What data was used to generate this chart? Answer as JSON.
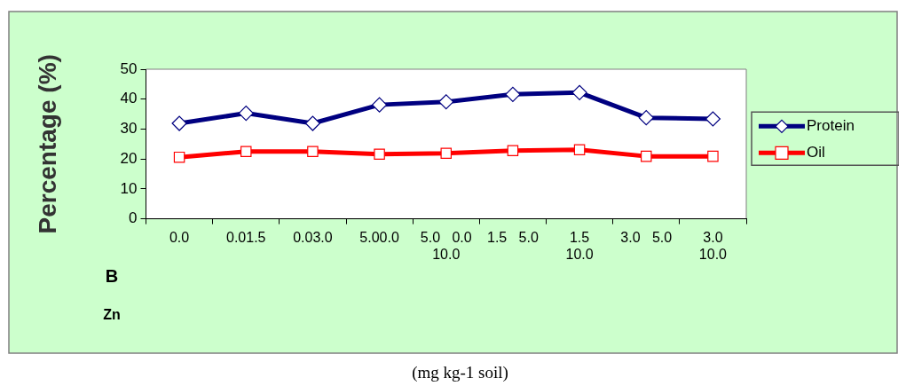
{
  "chart_data": {
    "type": "line",
    "ylabel": "Percentage (%)",
    "categories": [
      "0.0",
      "0.01.5",
      "0.03.0",
      "5.00.0",
      "5.0   0.0\n10.0",
      "1.5   5.0",
      "1.5\n10.0",
      "3.0   5.0",
      "3.0\n10.0"
    ],
    "series": [
      {
        "name": "Protein",
        "color": "#000080",
        "marker": "diamond",
        "values": [
          31.9,
          35.3,
          31.9,
          38.1,
          39.1,
          41.6,
          42.2,
          33.8,
          33.4
        ]
      },
      {
        "name": "Oil",
        "color": "#ff0000",
        "marker": "square",
        "values": [
          20.6,
          22.5,
          22.5,
          21.6,
          21.9,
          22.8,
          23.1,
          20.9,
          20.9
        ]
      }
    ],
    "ylim": [
      0,
      50
    ],
    "yticks": [
      0,
      10,
      20,
      30,
      40,
      50
    ],
    "grid": false,
    "legend": "right",
    "line_style": "solid",
    "annotations": [
      "B",
      "Zn",
      "(mg kg-1 soil)"
    ]
  }
}
